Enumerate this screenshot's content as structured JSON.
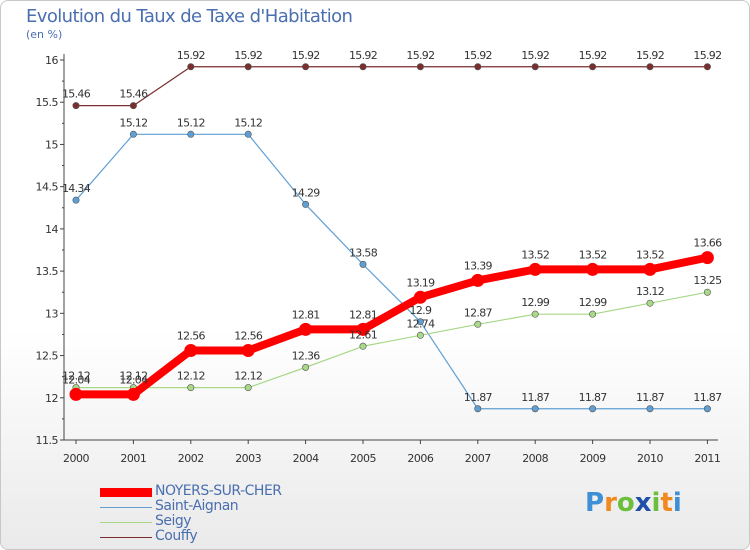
{
  "chart_data": {
    "type": "line",
    "title": "Evolution du Taux de Taxe d'Habitation",
    "subtitle": "(en %)",
    "categories": [
      "2000",
      "2001",
      "2002",
      "2003",
      "2004",
      "2005",
      "2006",
      "2007",
      "2008",
      "2009",
      "2010",
      "2011"
    ],
    "ylim": [
      11.5,
      16
    ],
    "yticks": [
      "11.5",
      "12",
      "12.5",
      "13",
      "13.5",
      "14",
      "14.5",
      "15",
      "15.5",
      "16"
    ],
    "grid": false,
    "legend_position": "bottom-left",
    "series": [
      {
        "name": "Couffy",
        "color": "#7a2e2e",
        "values": [
          15.46,
          15.46,
          15.92,
          15.92,
          15.92,
          15.92,
          15.92,
          15.92,
          15.92,
          15.92,
          15.92,
          15.92
        ],
        "labels": [
          "15.46",
          "15.46",
          "15.92",
          "15.92",
          "15.92",
          "15.92",
          "15.92",
          "15.92",
          "15.92",
          "15.92",
          "15.92",
          "15.92"
        ]
      },
      {
        "name": "Saint-Aignan",
        "color": "#5f9fd4",
        "values": [
          14.34,
          15.12,
          15.12,
          15.12,
          14.29,
          13.58,
          12.9,
          11.87,
          11.87,
          11.87,
          11.87,
          11.87
        ],
        "labels": [
          "14.34",
          "15.12",
          "15.12",
          "15.12",
          "14.29",
          "13.58",
          "12.9",
          "11.87",
          "11.87",
          "11.87",
          "11.87",
          "11.87"
        ]
      },
      {
        "name": "Seigy",
        "color": "#a8d888",
        "values": [
          12.12,
          12.12,
          12.12,
          12.12,
          12.36,
          12.61,
          12.74,
          12.87,
          12.99,
          12.99,
          13.12,
          13.25
        ],
        "labels": [
          "12.12",
          "12.12",
          "12.12",
          "12.12",
          "12.36",
          "12.61",
          "12.74",
          "12.87",
          "12.99",
          "12.99",
          "13.12",
          "13.25"
        ]
      },
      {
        "name": "NOYERS-SUR-CHER",
        "color": "#ff0000",
        "values": [
          12.04,
          12.04,
          12.56,
          12.56,
          12.81,
          12.81,
          13.19,
          13.39,
          13.52,
          13.52,
          13.52,
          13.66
        ],
        "labels": [
          "12.04",
          "12.04",
          "12.56",
          "12.56",
          "12.81",
          "12.81",
          "13.19",
          "13.39",
          "13.52",
          "13.52",
          "13.52",
          "13.66"
        ]
      }
    ],
    "legend": [
      "NOYERS-SUR-CHER",
      "Saint-Aignan",
      "Seigy",
      "Couffy"
    ]
  },
  "logo": {
    "letters": [
      "P",
      "r",
      "o",
      "x",
      "i",
      "t",
      "i"
    ],
    "colors": [
      "#3d8fd6",
      "#f08a1e",
      "#6cbf3c",
      "#1f4fa8",
      "#6cbf3c",
      "#f08a1e",
      "#3d8fd6"
    ]
  }
}
